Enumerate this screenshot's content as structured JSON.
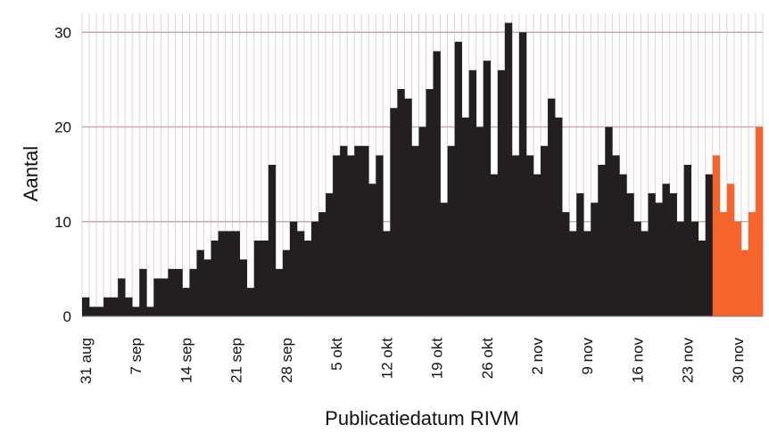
{
  "chart_data": {
    "type": "bar",
    "x_label": "Publicatiedatum RIVM",
    "y_label": "Aantal",
    "categories": [
      "31 aug",
      null,
      null,
      null,
      null,
      null,
      null,
      "7 sep",
      null,
      null,
      null,
      null,
      null,
      null,
      "14 sep",
      null,
      null,
      null,
      null,
      null,
      null,
      "21 sep",
      null,
      null,
      null,
      null,
      null,
      null,
      "28 sep",
      null,
      null,
      null,
      null,
      null,
      null,
      "5 okt",
      null,
      null,
      null,
      null,
      null,
      null,
      "12 okt",
      null,
      null,
      null,
      null,
      null,
      null,
      "19 okt",
      null,
      null,
      null,
      null,
      null,
      null,
      "26 okt",
      null,
      null,
      null,
      null,
      null,
      null,
      "2 nov",
      null,
      null,
      null,
      null,
      null,
      null,
      "9 nov",
      null,
      null,
      null,
      null,
      null,
      null,
      "16 nov",
      null,
      null,
      null,
      null,
      null,
      null,
      "23 nov",
      null,
      null,
      null,
      null,
      null,
      null,
      "30 nov",
      null,
      null,
      null
    ],
    "series": [
      {
        "color": "#231f20",
        "values": [
          2,
          1,
          1,
          2,
          2,
          4,
          2,
          1,
          5,
          1,
          4,
          4,
          5,
          5,
          3,
          5,
          7,
          6,
          8,
          9,
          9,
          9,
          6,
          3,
          8,
          8,
          16,
          5,
          7,
          10,
          9,
          8,
          10,
          11,
          13,
          17,
          18,
          17,
          18,
          18,
          14,
          17,
          9,
          22,
          24,
          23,
          18,
          20,
          24,
          28,
          12,
          18,
          29,
          21,
          26,
          20,
          27,
          15,
          26,
          31,
          17,
          30,
          17,
          15,
          18,
          23,
          21,
          11,
          9,
          13,
          9,
          12,
          16,
          20,
          17,
          15,
          13,
          10,
          9,
          13,
          12,
          14,
          13,
          10,
          16,
          10,
          8,
          15,
          null,
          null,
          null,
          null,
          null,
          null,
          null
        ]
      },
      {
        "color": "#f5642a",
        "values": [
          null,
          null,
          null,
          null,
          null,
          null,
          null,
          null,
          null,
          null,
          null,
          null,
          null,
          null,
          null,
          null,
          null,
          null,
          null,
          null,
          null,
          null,
          null,
          null,
          null,
          null,
          null,
          null,
          null,
          null,
          null,
          null,
          null,
          null,
          null,
          null,
          null,
          null,
          null,
          null,
          null,
          null,
          null,
          null,
          null,
          null,
          null,
          null,
          null,
          null,
          null,
          null,
          null,
          null,
          null,
          null,
          null,
          null,
          null,
          null,
          null,
          null,
          null,
          null,
          null,
          null,
          null,
          null,
          null,
          null,
          null,
          null,
          null,
          null,
          null,
          null,
          null,
          null,
          null,
          null,
          null,
          null,
          null,
          null,
          null,
          null,
          null,
          null,
          17,
          11,
          14,
          10,
          7,
          11,
          20
        ]
      }
    ],
    "ylim": [
      0,
      32
    ],
    "yticks": [
      0,
      10,
      20,
      30
    ],
    "grid": true
  }
}
